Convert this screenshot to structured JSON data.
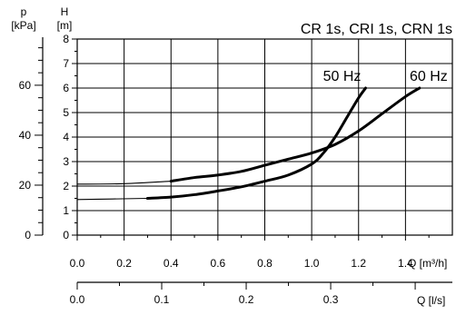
{
  "chart_data": {
    "type": "line",
    "title": "CR 1s, CRI 1s, CRN 1s",
    "axes": {
      "head": {
        "symbol": "H",
        "unit": "[m]",
        "range": [
          0,
          8
        ],
        "ticks": [
          "0",
          "1",
          "2",
          "3",
          "4",
          "5",
          "6",
          "7",
          "8"
        ]
      },
      "pressure": {
        "symbol": "p",
        "unit": "[kPa]",
        "range": [
          0,
          78.5
        ],
        "ticks": [
          "0",
          "20",
          "40",
          "60"
        ],
        "minor_step": 5
      },
      "flow_m3h": {
        "label": "Q [m³/h]",
        "range": [
          0,
          1.6
        ],
        "ticks": [
          "0.0",
          "0.2",
          "0.4",
          "0.6",
          "0.8",
          "1.0",
          "1.2",
          "1.4"
        ]
      },
      "flow_ls": {
        "label": "Q [l/s]",
        "range": [
          0,
          0.444
        ],
        "ticks": [
          "0.0",
          "0.1",
          "0.2",
          "0.3"
        ],
        "minor_step": 0.05
      }
    },
    "grid": true,
    "series": [
      {
        "name": "50 Hz",
        "x": [
          0.0,
          0.3,
          0.4,
          0.5,
          0.6,
          0.7,
          0.8,
          0.9,
          1.0,
          1.05,
          1.1,
          1.15,
          1.2,
          1.23
        ],
        "y": [
          1.45,
          1.5,
          1.55,
          1.65,
          1.8,
          1.97,
          2.2,
          2.45,
          2.9,
          3.35,
          4.0,
          4.8,
          5.6,
          6.0
        ],
        "thin_below_x": 0.3
      },
      {
        "name": "60 Hz",
        "x": [
          0.0,
          0.2,
          0.4,
          0.5,
          0.6,
          0.7,
          0.8,
          0.9,
          1.0,
          1.1,
          1.2,
          1.3,
          1.4,
          1.46
        ],
        "y": [
          2.08,
          2.1,
          2.2,
          2.35,
          2.45,
          2.6,
          2.85,
          3.1,
          3.35,
          3.7,
          4.25,
          4.95,
          5.65,
          6.0
        ],
        "thin_below_x": 0.4
      }
    ]
  }
}
